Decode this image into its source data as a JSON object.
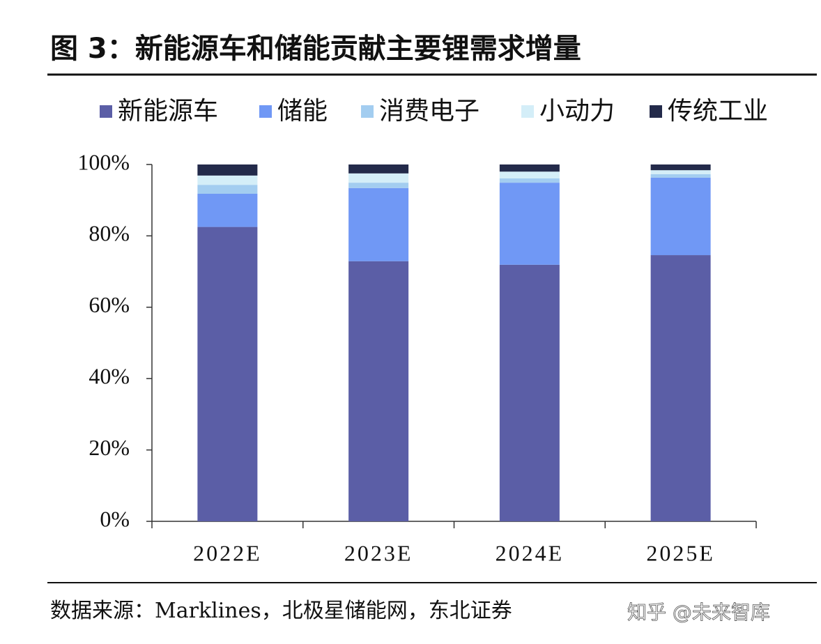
{
  "chart_data": {
    "type": "stacked_bar",
    "title": "图 3：新能源车和储能贡献主要锂需求增量",
    "categories": [
      "2022E",
      "2023E",
      "2024E",
      "2025E"
    ],
    "series": [
      {
        "name": "新能源车",
        "color": "#5b5ea6",
        "values": [
          82.5,
          72.9,
          71.9,
          74.6
        ]
      },
      {
        "name": "储能",
        "color": "#7098f5",
        "values": [
          9.3,
          20.5,
          23,
          21.7
        ]
      },
      {
        "name": "消费电子",
        "color": "#a3cdf0",
        "values": [
          2.5,
          1.5,
          1.2,
          1.0
        ]
      },
      {
        "name": "小动力",
        "color": "#d4eef8",
        "values": [
          2.6,
          2.6,
          1.9,
          1.1
        ]
      },
      {
        "name": "传统工业",
        "color": "#232a4a",
        "values": [
          3.1,
          2.5,
          2,
          1.6
        ]
      }
    ],
    "ylim": [
      0,
      100
    ],
    "yticks": [
      {
        "value": 0,
        "label": "0%"
      },
      {
        "value": 20,
        "label": "20%"
      },
      {
        "value": 40,
        "label": "40%"
      },
      {
        "value": 60,
        "label": "60%"
      },
      {
        "value": 80,
        "label": "80%"
      },
      {
        "value": 100,
        "label": "100%"
      }
    ],
    "legend_position": "top",
    "source": "数据来源：Marklines，北极星储能网，东北证券",
    "watermark": "知乎 @未来智库"
  }
}
